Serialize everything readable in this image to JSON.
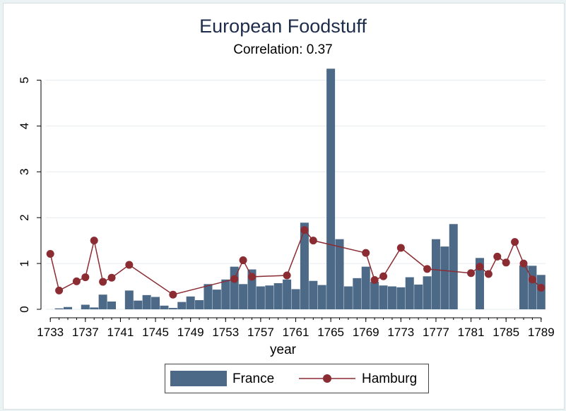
{
  "colors": {
    "france": "#4c6a88",
    "hamburg": "#8b2c33",
    "grid": "#e6ecef",
    "background": "#eaf2f3"
  },
  "chart_data": {
    "type": "bar+line",
    "title": "European Foodstuff",
    "subtitle": "Correlation: 0.37",
    "xlabel": "year",
    "ylabel": "",
    "xlim": [
      1732.5,
      1789.5
    ],
    "ylim": [
      0,
      5.3
    ],
    "xticks": [
      1733,
      1737,
      1741,
      1745,
      1749,
      1753,
      1757,
      1761,
      1765,
      1769,
      1773,
      1777,
      1781,
      1785,
      1789
    ],
    "yticks": [
      0,
      1,
      2,
      3,
      4,
      5
    ],
    "grid": "horizontal",
    "legend_position": "bottom",
    "series": [
      {
        "name": "France",
        "kind": "bar",
        "x": [
          1734,
          1735,
          1737,
          1738,
          1739,
          1740,
          1742,
          1743,
          1744,
          1745,
          1746,
          1747,
          1748,
          1749,
          1750,
          1751,
          1752,
          1753,
          1754,
          1755,
          1756,
          1757,
          1758,
          1759,
          1760,
          1761,
          1762,
          1763,
          1764,
          1765,
          1766,
          1767,
          1768,
          1769,
          1770,
          1771,
          1772,
          1773,
          1774,
          1775,
          1776,
          1777,
          1778,
          1779,
          1780,
          1782,
          1787,
          1788,
          1789
        ],
        "y": [
          0.02,
          0.05,
          0.1,
          0.04,
          0.32,
          0.17,
          0.41,
          0.19,
          0.31,
          0.27,
          0.08,
          0.03,
          0.16,
          0.28,
          0.2,
          0.55,
          0.43,
          0.65,
          0.93,
          0.55,
          0.87,
          0.5,
          0.52,
          0.57,
          0.65,
          0.44,
          1.89,
          0.62,
          0.53,
          5.25,
          1.53,
          0.5,
          0.68,
          0.93,
          0.6,
          0.52,
          0.5,
          0.48,
          0.7,
          0.54,
          0.72,
          1.53,
          1.37,
          1.86,
          0.0,
          1.12,
          0.96,
          0.95,
          0.75
        ]
      },
      {
        "name": "Hamburg",
        "kind": "line",
        "x": [
          1733,
          1734,
          1736,
          1737,
          1738,
          1739,
          1740,
          1742,
          1747,
          1754,
          1755,
          1756,
          1760,
          1762,
          1763,
          1769,
          1770,
          1771,
          1773,
          1776,
          1781,
          1782,
          1783,
          1784,
          1785,
          1786,
          1787,
          1788,
          1789
        ],
        "y": [
          1.21,
          0.41,
          0.61,
          0.7,
          1.5,
          0.6,
          0.69,
          0.97,
          0.32,
          0.66,
          1.07,
          0.71,
          0.74,
          1.73,
          1.5,
          1.23,
          0.64,
          0.72,
          1.34,
          0.88,
          0.79,
          0.93,
          0.77,
          1.15,
          1.02,
          1.47,
          1.0,
          0.65,
          0.47
        ]
      }
    ]
  },
  "legend": {
    "france_label": "France",
    "hamburg_label": "Hamburg"
  }
}
